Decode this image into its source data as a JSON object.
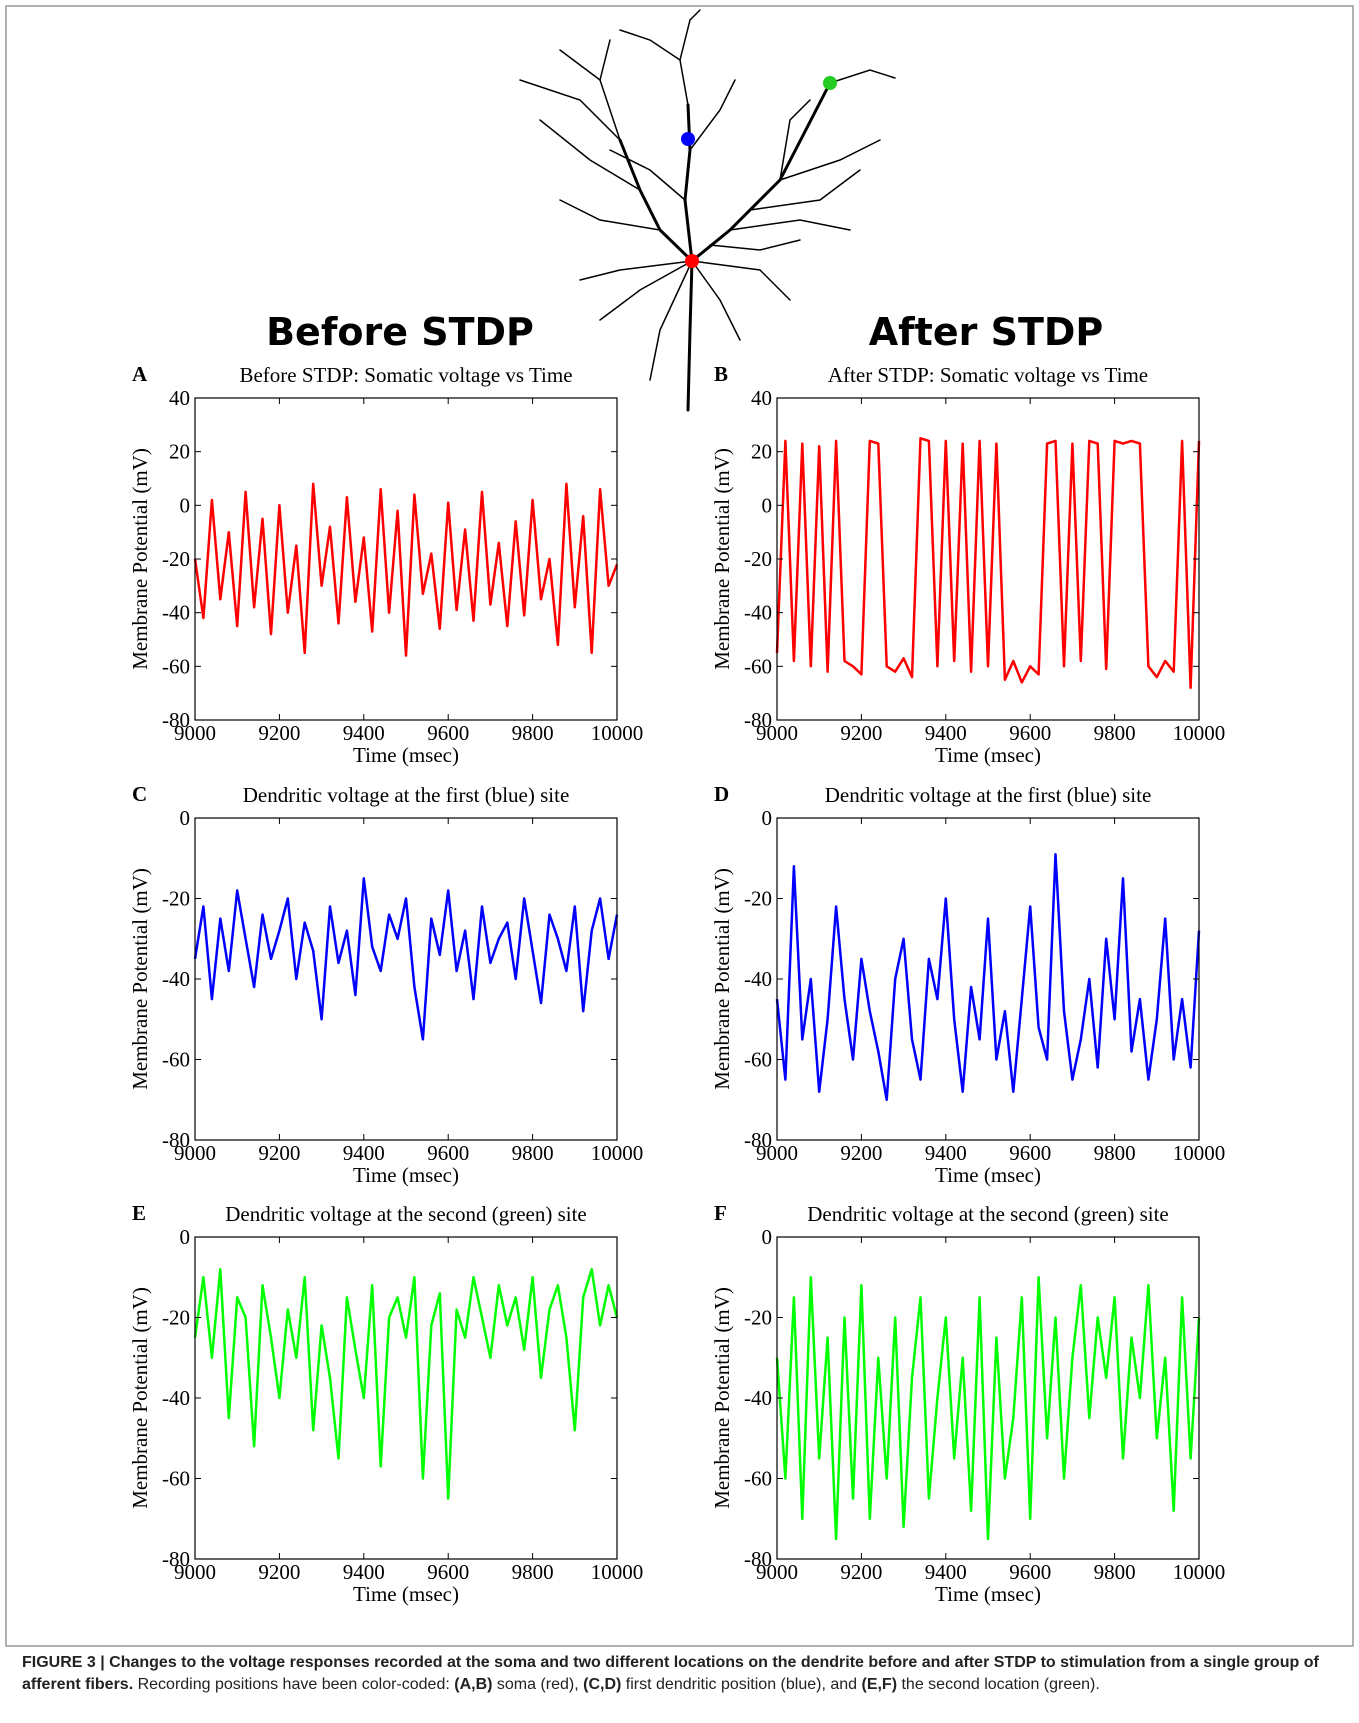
{
  "headers": {
    "before": "Before STDP",
    "after": "After STDP"
  },
  "caption": {
    "parts": [
      "FIGURE 3 | Changes to the voltage responses recorded at the soma and two different locations on the dendrite before and after STDP to stimulation from a single group of afferent fibers.",
      " Recording positions have been color-coded: ",
      "(A,B)",
      " soma (red), ",
      "(C,D)",
      " first dendritic position (blue), and ",
      "(E,F)",
      " the second location (green)."
    ]
  },
  "chart_data": [
    {
      "type": "line",
      "panel": "A",
      "title": "Before STDP: Somatic voltage vs Time",
      "xlabel": "Time (msec)",
      "ylabel": "Membrane Potential (mV)",
      "color": "#ff0000",
      "x": [
        9000,
        9020,
        9040,
        9060,
        9080,
        9100,
        9120,
        9140,
        9160,
        9180,
        9200,
        9220,
        9240,
        9260,
        9280,
        9300,
        9320,
        9340,
        9360,
        9380,
        9400,
        9420,
        9440,
        9460,
        9480,
        9500,
        9520,
        9540,
        9560,
        9580,
        9600,
        9620,
        9640,
        9660,
        9680,
        9700,
        9720,
        9740,
        9760,
        9780,
        9800,
        9820,
        9840,
        9860,
        9880,
        9900,
        9920,
        9940,
        9960,
        9980,
        10000
      ],
      "values": [
        -20,
        -42,
        2,
        -35,
        -10,
        -45,
        5,
        -38,
        -5,
        -48,
        0,
        -40,
        -15,
        -55,
        8,
        -30,
        -8,
        -44,
        3,
        -36,
        -12,
        -47,
        6,
        -40,
        -2,
        -56,
        4,
        -33,
        -18,
        -46,
        1,
        -39,
        -9,
        -43,
        5,
        -37,
        -14,
        -45,
        -6,
        -41,
        2,
        -35,
        -20,
        -52,
        8,
        -38,
        -4,
        -55,
        6,
        -30,
        -22
      ],
      "xlim": [
        9000,
        10000
      ],
      "xticks": [
        9000,
        9200,
        9400,
        9600,
        9800,
        10000
      ],
      "ylim": [
        -80,
        40
      ],
      "yticks": [
        -80,
        -60,
        -40,
        -20,
        0,
        20,
        40
      ]
    },
    {
      "type": "line",
      "panel": "B",
      "title": "After STDP: Somatic voltage vs Time",
      "xlabel": "Time (msec)",
      "ylabel": "Membrane Potential (mV)",
      "color": "#ff0000",
      "x": [
        9000,
        9020,
        9040,
        9060,
        9080,
        9100,
        9120,
        9140,
        9160,
        9180,
        9200,
        9220,
        9240,
        9260,
        9280,
        9300,
        9320,
        9340,
        9360,
        9380,
        9400,
        9420,
        9440,
        9460,
        9480,
        9500,
        9520,
        9540,
        9560,
        9580,
        9600,
        9620,
        9640,
        9660,
        9680,
        9700,
        9720,
        9740,
        9760,
        9780,
        9800,
        9820,
        9840,
        9860,
        9880,
        9900,
        9920,
        9940,
        9960,
        9980,
        10000
      ],
      "values": [
        -55,
        24,
        -58,
        23,
        -60,
        22,
        -62,
        24,
        -58,
        -60,
        -63,
        24,
        23,
        -60,
        -62,
        -57,
        -64,
        25,
        24,
        -60,
        24,
        -58,
        23,
        -62,
        24,
        -60,
        23,
        -65,
        -58,
        -66,
        -60,
        -63,
        23,
        24,
        -60,
        23,
        -58,
        24,
        23,
        -61,
        24,
        23,
        24,
        23,
        -60,
        -64,
        -58,
        -62,
        24,
        -68,
        24
      ],
      "xlim": [
        9000,
        10000
      ],
      "xticks": [
        9000,
        9200,
        9400,
        9600,
        9800,
        10000
      ],
      "ylim": [
        -80,
        40
      ],
      "yticks": [
        -80,
        -60,
        -40,
        -20,
        0,
        20,
        40
      ]
    },
    {
      "type": "line",
      "panel": "C",
      "title": "Dendritic voltage at the first (blue) site",
      "xlabel": "Time (msec)",
      "ylabel": "Membrane Potential (mV)",
      "color": "#0000ff",
      "x": [
        9000,
        9020,
        9040,
        9060,
        9080,
        9100,
        9120,
        9140,
        9160,
        9180,
        9200,
        9220,
        9240,
        9260,
        9280,
        9300,
        9320,
        9340,
        9360,
        9380,
        9400,
        9420,
        9440,
        9460,
        9480,
        9500,
        9520,
        9540,
        9560,
        9580,
        9600,
        9620,
        9640,
        9660,
        9680,
        9700,
        9720,
        9740,
        9760,
        9780,
        9800,
        9820,
        9840,
        9860,
        9880,
        9900,
        9920,
        9940,
        9960,
        9980,
        10000
      ],
      "values": [
        -35,
        -22,
        -45,
        -25,
        -38,
        -18,
        -30,
        -42,
        -24,
        -35,
        -28,
        -20,
        -40,
        -26,
        -33,
        -50,
        -22,
        -36,
        -28,
        -44,
        -15,
        -32,
        -38,
        -24,
        -30,
        -20,
        -42,
        -55,
        -25,
        -34,
        -18,
        -38,
        -28,
        -45,
        -22,
        -36,
        -30,
        -26,
        -40,
        -20,
        -33,
        -46,
        -24,
        -30,
        -38,
        -22,
        -48,
        -28,
        -20,
        -35,
        -24
      ],
      "xlim": [
        9000,
        10000
      ],
      "xticks": [
        9000,
        9200,
        9400,
        9600,
        9800,
        10000
      ],
      "ylim": [
        -80,
        0
      ],
      "yticks": [
        -80,
        -60,
        -40,
        -20,
        0
      ]
    },
    {
      "type": "line",
      "panel": "D",
      "title": "Dendritic voltage at the first (blue) site",
      "xlabel": "Time (msec)",
      "ylabel": "Membrane Potential (mV)",
      "color": "#0000ff",
      "x": [
        9000,
        9020,
        9040,
        9060,
        9080,
        9100,
        9120,
        9140,
        9160,
        9180,
        9200,
        9220,
        9240,
        9260,
        9280,
        9300,
        9320,
        9340,
        9360,
        9380,
        9400,
        9420,
        9440,
        9460,
        9480,
        9500,
        9520,
        9540,
        9560,
        9580,
        9600,
        9620,
        9640,
        9660,
        9680,
        9700,
        9720,
        9740,
        9760,
        9780,
        9800,
        9820,
        9840,
        9860,
        9880,
        9900,
        9920,
        9940,
        9960,
        9980,
        10000
      ],
      "values": [
        -45,
        -65,
        -12,
        -55,
        -40,
        -68,
        -50,
        -22,
        -45,
        -60,
        -35,
        -48,
        -58,
        -70,
        -40,
        -30,
        -55,
        -65,
        -35,
        -45,
        -20,
        -50,
        -68,
        -42,
        -55,
        -25,
        -60,
        -48,
        -68,
        -45,
        -22,
        -52,
        -60,
        -9,
        -48,
        -65,
        -55,
        -40,
        -62,
        -30,
        -50,
        -15,
        -58,
        -45,
        -65,
        -50,
        -25,
        -60,
        -45,
        -62,
        -28
      ],
      "xlim": [
        9000,
        10000
      ],
      "xticks": [
        9000,
        9200,
        9400,
        9600,
        9800,
        10000
      ],
      "ylim": [
        -80,
        0
      ],
      "yticks": [
        -80,
        -60,
        -40,
        -20,
        0
      ]
    },
    {
      "type": "line",
      "panel": "E",
      "title": "Dendritic voltage at the second (green) site",
      "xlabel": "Time (msec)",
      "ylabel": "Membrane Potential (mV)",
      "color": "#00ff00",
      "x": [
        9000,
        9020,
        9040,
        9060,
        9080,
        9100,
        9120,
        9140,
        9160,
        9180,
        9200,
        9220,
        9240,
        9260,
        9280,
        9300,
        9320,
        9340,
        9360,
        9380,
        9400,
        9420,
        9440,
        9460,
        9480,
        9500,
        9520,
        9540,
        9560,
        9580,
        9600,
        9620,
        9640,
        9660,
        9680,
        9700,
        9720,
        9740,
        9760,
        9780,
        9800,
        9820,
        9840,
        9860,
        9880,
        9900,
        9920,
        9940,
        9960,
        9980,
        10000
      ],
      "values": [
        -25,
        -10,
        -30,
        -8,
        -45,
        -15,
        -20,
        -52,
        -12,
        -25,
        -40,
        -18,
        -30,
        -10,
        -48,
        -22,
        -35,
        -55,
        -15,
        -28,
        -40,
        -12,
        -57,
        -20,
        -15,
        -25,
        -10,
        -60,
        -22,
        -14,
        -65,
        -18,
        -25,
        -10,
        -20,
        -30,
        -12,
        -22,
        -15,
        -28,
        -10,
        -35,
        -18,
        -12,
        -25,
        -48,
        -15,
        -8,
        -22,
        -12,
        -20
      ],
      "xlim": [
        9000,
        10000
      ],
      "xticks": [
        9000,
        9200,
        9400,
        9600,
        9800,
        10000
      ],
      "ylim": [
        -80,
        0
      ],
      "yticks": [
        -80,
        -60,
        -40,
        -20,
        0
      ]
    },
    {
      "type": "line",
      "panel": "F",
      "title": "Dendritic voltage at the second (green) site",
      "xlabel": "Time (msec)",
      "ylabel": "Membrane Potential (mV)",
      "color": "#00ff00",
      "x": [
        9000,
        9020,
        9040,
        9060,
        9080,
        9100,
        9120,
        9140,
        9160,
        9180,
        9200,
        9220,
        9240,
        9260,
        9280,
        9300,
        9320,
        9340,
        9360,
        9380,
        9400,
        9420,
        9440,
        9460,
        9480,
        9500,
        9520,
        9540,
        9560,
        9580,
        9600,
        9620,
        9640,
        9660,
        9680,
        9700,
        9720,
        9740,
        9760,
        9780,
        9800,
        9820,
        9840,
        9860,
        9880,
        9900,
        9920,
        9940,
        9960,
        9980,
        10000
      ],
      "values": [
        -30,
        -60,
        -15,
        -70,
        -10,
        -55,
        -25,
        -75,
        -20,
        -65,
        -12,
        -70,
        -30,
        -60,
        -20,
        -72,
        -35,
        -15,
        -65,
        -40,
        -20,
        -55,
        -30,
        -68,
        -15,
        -75,
        -25,
        -60,
        -45,
        -15,
        -70,
        -10,
        -50,
        -20,
        -60,
        -30,
        -12,
        -45,
        -20,
        -35,
        -15,
        -55,
        -25,
        -40,
        -12,
        -50,
        -30,
        -68,
        -15,
        -55,
        -20
      ],
      "xlim": [
        9000,
        10000
      ],
      "xticks": [
        9000,
        9200,
        9400,
        9600,
        9800,
        10000
      ],
      "ylim": [
        -80,
        0
      ],
      "yticks": [
        -80,
        -60,
        -40,
        -20,
        0
      ]
    }
  ]
}
